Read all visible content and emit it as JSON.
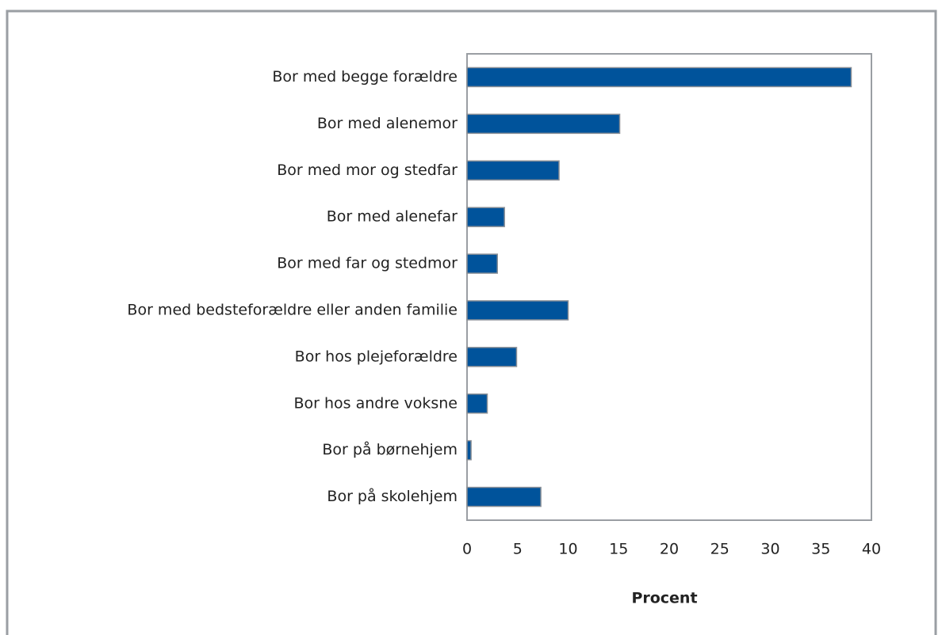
{
  "chart_data": {
    "type": "bar",
    "orientation": "horizontal",
    "categories": [
      "Bor med begge forældre",
      "Bor med alenemor",
      "Bor med mor og stedfar",
      "Bor med alenefar",
      "Bor med far og stedmor",
      "Bor med bedsteforældre eller anden familie",
      "Bor hos plejeforældre",
      "Bor hos andre voksne",
      "Bor på børnehjem",
      "Bor på skolehjem"
    ],
    "values": [
      38,
      15.1,
      9.1,
      3.7,
      3.0,
      10.0,
      4.9,
      2.0,
      0.4,
      7.3
    ],
    "color": "#00539b",
    "xlim": [
      0,
      40
    ],
    "xticks": [
      0,
      5,
      10,
      15,
      20,
      25,
      30,
      35,
      40
    ],
    "xlabel": "Procent"
  }
}
